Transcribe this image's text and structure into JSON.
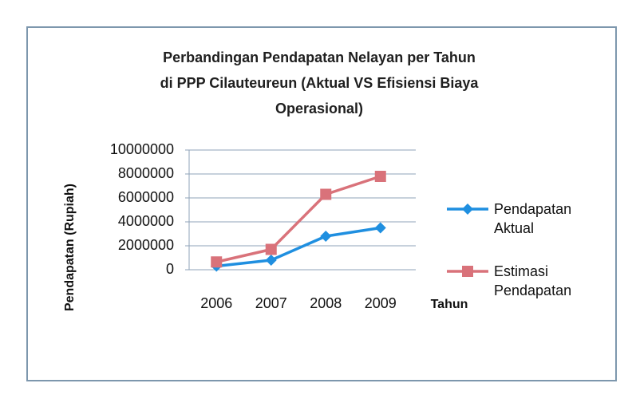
{
  "chart_data": {
    "type": "line",
    "title": [
      "Perbandingan Pendapatan Nelayan per Tahun",
      "di PPP Cilauteureun   (Aktual VS Efisiensi Biaya",
      "Operasional)"
    ],
    "x_label": "Tahun",
    "y_label": "Pendapatan (Rupiah)",
    "categories": [
      "2006",
      "2007",
      "2008",
      "2009"
    ],
    "series": [
      {
        "name": "Pendapatan Aktual",
        "color": "#1f8fe0",
        "marker": "diamond",
        "values": [
          300000,
          800000,
          2800000,
          3500000
        ]
      },
      {
        "name": "Estimasi Pendapatan",
        "color": "#d9727a",
        "marker": "square",
        "values": [
          650000,
          1700000,
          6300000,
          7800000
        ]
      }
    ],
    "ylim": [
      0,
      10000000
    ],
    "yticks": [
      0,
      2000000,
      4000000,
      6000000,
      8000000,
      10000000
    ],
    "grid": true,
    "legend": "right"
  }
}
